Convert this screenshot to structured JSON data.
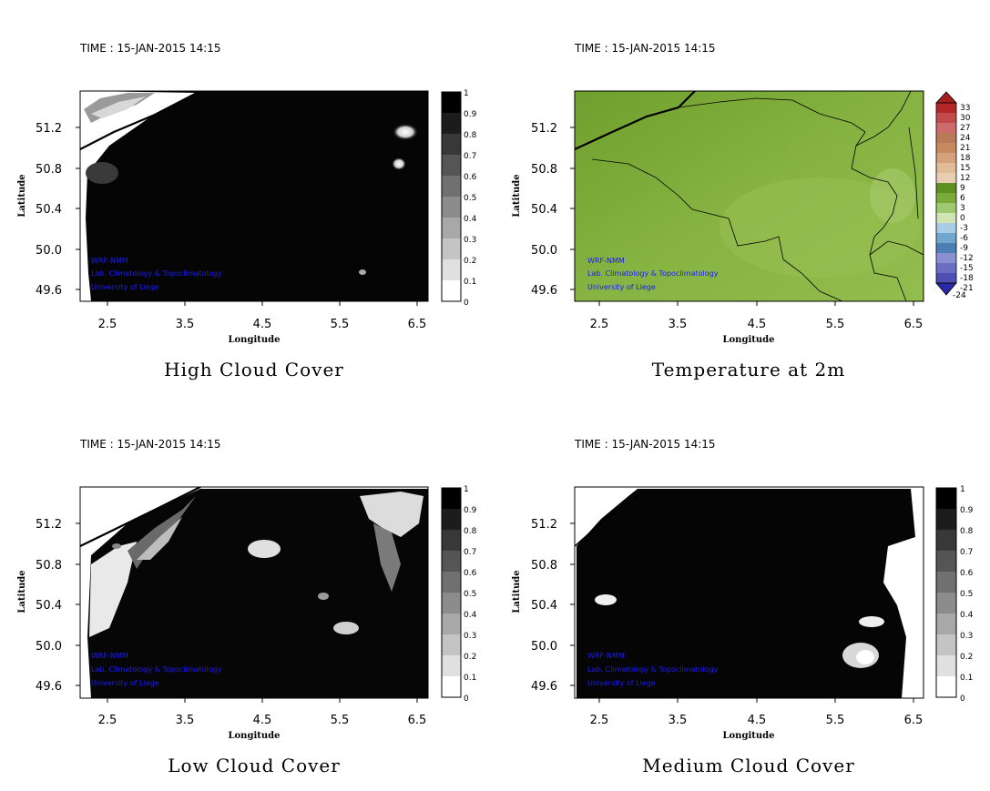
{
  "colors": {
    "credit_text": "#1a1aff",
    "temperature_base": "#7aaa38"
  },
  "panels": [
    {
      "id": "high-cloud",
      "time_label": "TIME : 15-JAN-2015 14:15",
      "caption": "High Cloud Cover",
      "xlabel": "Longitude",
      "ylabel": "Latitude",
      "x_ticks": [
        "2.5",
        "3.5",
        "4.5",
        "5.5",
        "6.5"
      ],
      "y_ticks": [
        "51.2",
        "50.8",
        "50.4",
        "50.0",
        "49.6"
      ],
      "colorbar_labels": [
        "1",
        "0.9",
        "0.8",
        "0.7",
        "0.6",
        "0.5",
        "0.4",
        "0.3",
        "0.2",
        "0.1",
        "0"
      ],
      "credits": [
        "WRF-NMM",
        "Lab. Climatology & Topoclimatology",
        "University of Liege"
      ]
    },
    {
      "id": "temperature",
      "time_label": "TIME : 15-JAN-2015 14:15",
      "caption": "Temperature at 2m",
      "xlabel": "Longitude",
      "ylabel": "Latitude",
      "x_ticks": [
        "2.5",
        "3.5",
        "4.5",
        "5.5",
        "6.5"
      ],
      "y_ticks": [
        "51.2",
        "50.8",
        "50.4",
        "50.0",
        "49.6"
      ],
      "colorbar_labels": [
        "33",
        "30",
        "27",
        "24",
        "21",
        "18",
        "15",
        "12",
        "9",
        "6",
        "3",
        "0",
        "-3",
        "-6",
        "-9",
        "-12",
        "-15",
        "-18",
        "-21",
        "-24"
      ],
      "credits": [
        "WRF-NMM",
        "Lab. Climatology & Topoclimatology",
        "University of Liege"
      ]
    },
    {
      "id": "low-cloud",
      "time_label": "TIME : 15-JAN-2015 14:15",
      "caption": "Low Cloud Cover",
      "xlabel": "Longitude",
      "ylabel": "Latitude",
      "x_ticks": [
        "2.5",
        "3.5",
        "4.5",
        "5.5",
        "6.5"
      ],
      "y_ticks": [
        "51.2",
        "50.8",
        "50.4",
        "50.0",
        "49.6"
      ],
      "colorbar_labels": [
        "1",
        "0.9",
        "0.8",
        "0.7",
        "0.6",
        "0.5",
        "0.4",
        "0.3",
        "0.2",
        "0.1",
        "0"
      ],
      "credits": [
        "WRF-NMM",
        "Lab. Climatology & Topoclimatology",
        "University of Liege"
      ]
    },
    {
      "id": "medium-cloud",
      "time_label": "TIME : 15-JAN-2015 14:15",
      "caption": "Medium Cloud Cover",
      "xlabel": "Longitude",
      "ylabel": "Latitude",
      "x_ticks": [
        "2.5",
        "3.5",
        "4.5",
        "5.5",
        "6.5"
      ],
      "y_ticks": [
        "51.2",
        "50.8",
        "50.4",
        "50.0",
        "49.6"
      ],
      "colorbar_labels": [
        "1",
        "0.9",
        "0.8",
        "0.7",
        "0.6",
        "0.5",
        "0.4",
        "0.3",
        "0.2",
        "0.1",
        "0"
      ],
      "credits": [
        "WRF-NMM",
        "Lab. Climatology & Topoclimatology",
        "University of Liege"
      ]
    }
  ]
}
